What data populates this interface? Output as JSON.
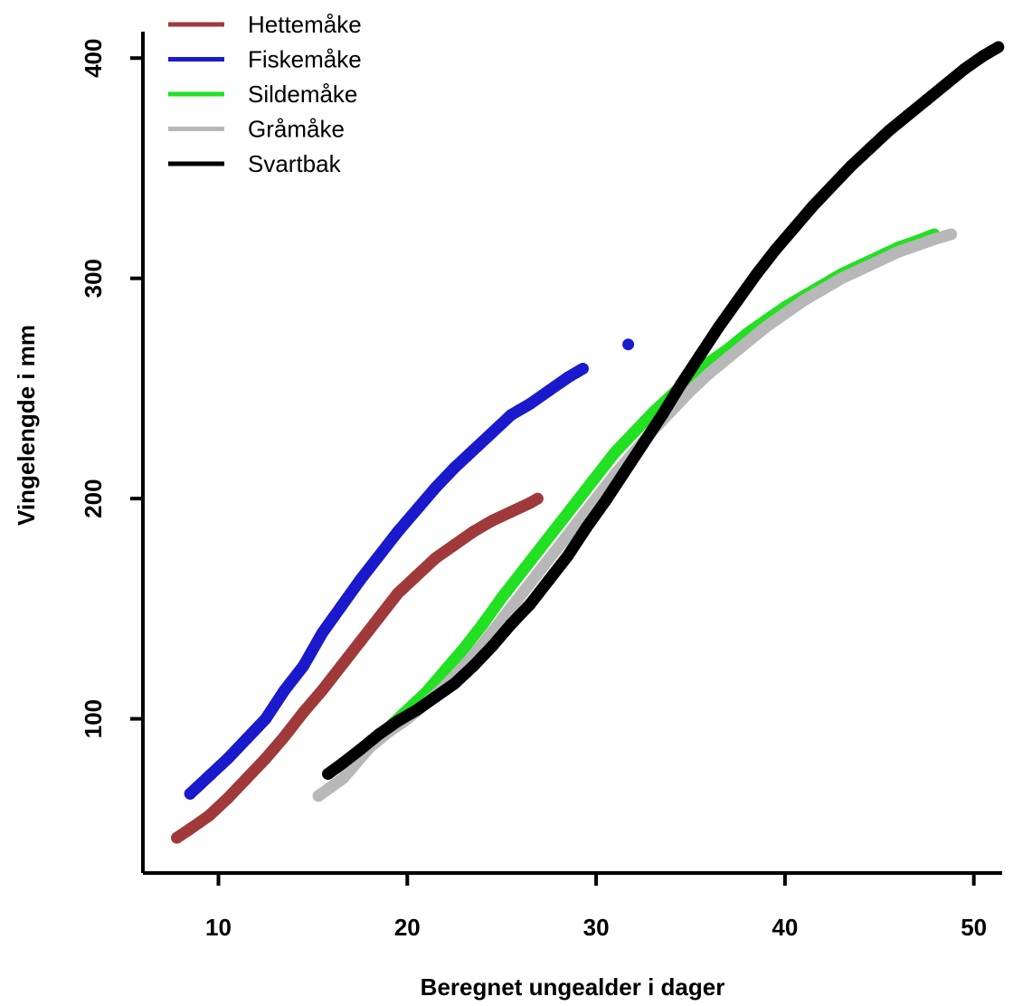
{
  "chart_data": {
    "type": "scatter",
    "title": "",
    "xlabel": "Beregnet ungealder i dager",
    "ylabel": "Vingelengde i mm",
    "xlim": [
      6,
      51.5
    ],
    "ylim": [
      30,
      412
    ],
    "xticks": [
      "10",
      "20",
      "30",
      "40",
      "50"
    ],
    "yticks": [
      "100",
      "200",
      "300",
      "400"
    ],
    "grid": false,
    "legend_position": "top-left",
    "series": [
      {
        "name": "Hettemåke",
        "color": "#a03a3a",
        "points": [
          [
            7.8,
            46
          ],
          [
            8.5,
            50
          ],
          [
            9.5,
            56
          ],
          [
            10.5,
            64
          ],
          [
            11.5,
            73
          ],
          [
            12.5,
            82
          ],
          [
            13.5,
            92
          ],
          [
            14.5,
            103
          ],
          [
            15.5,
            113
          ],
          [
            16.5,
            124
          ],
          [
            17.5,
            135
          ],
          [
            18.5,
            146
          ],
          [
            19.5,
            157
          ],
          [
            20.5,
            165
          ],
          [
            21.5,
            173
          ],
          [
            22.5,
            179
          ],
          [
            23.5,
            185
          ],
          [
            24.5,
            190
          ],
          [
            25.5,
            194
          ],
          [
            26.5,
            198
          ],
          [
            26.9,
            200
          ]
        ]
      },
      {
        "name": "Fiskemåke",
        "color": "#1a1acc",
        "points": [
          [
            8.5,
            66
          ],
          [
            9.5,
            74
          ],
          [
            10.5,
            82
          ],
          [
            11.5,
            91
          ],
          [
            12.5,
            100
          ],
          [
            13.5,
            113
          ],
          [
            14.5,
            124
          ],
          [
            15.5,
            139
          ],
          [
            16.5,
            151
          ],
          [
            17.5,
            163
          ],
          [
            18.5,
            174
          ],
          [
            19.5,
            185
          ],
          [
            20.5,
            195
          ],
          [
            21.5,
            205
          ],
          [
            22.5,
            214
          ],
          [
            23.5,
            222
          ],
          [
            24.5,
            230
          ],
          [
            25.5,
            238
          ],
          [
            26.5,
            243
          ],
          [
            27.5,
            249
          ],
          [
            28.5,
            255
          ],
          [
            29.3,
            259
          ],
          [
            31.7,
            270
          ]
        ]
      },
      {
        "name": "Sildemåke",
        "color": "#22e022",
        "points": [
          [
            17.2,
            84
          ],
          [
            18,
            89
          ],
          [
            19,
            96
          ],
          [
            20,
            104
          ],
          [
            21,
            112
          ],
          [
            22,
            122
          ],
          [
            23,
            132
          ],
          [
            24,
            143
          ],
          [
            25,
            155
          ],
          [
            26,
            166
          ],
          [
            27,
            177
          ],
          [
            28,
            188
          ],
          [
            29,
            199
          ],
          [
            30,
            210
          ],
          [
            31,
            221
          ],
          [
            32,
            230
          ],
          [
            33,
            239
          ],
          [
            34,
            247
          ],
          [
            35,
            255
          ],
          [
            36,
            262
          ],
          [
            37,
            268
          ],
          [
            38,
            275
          ],
          [
            39,
            281
          ],
          [
            40,
            287
          ],
          [
            41,
            292
          ],
          [
            42,
            297
          ],
          [
            43,
            302
          ],
          [
            44,
            306
          ],
          [
            45,
            310
          ],
          [
            46,
            314
          ],
          [
            47,
            317
          ],
          [
            47.9,
            320
          ]
        ]
      },
      {
        "name": "Gråmåke",
        "color": "#b8b8b8",
        "points": [
          [
            15.3,
            65
          ],
          [
            16.6,
            73
          ],
          [
            18,
            87
          ],
          [
            19,
            94
          ],
          [
            20,
            100
          ],
          [
            21,
            107
          ],
          [
            22,
            115
          ],
          [
            23,
            124
          ],
          [
            24,
            134
          ],
          [
            25,
            145
          ],
          [
            26,
            156
          ],
          [
            27,
            167
          ],
          [
            28,
            178
          ],
          [
            29,
            189
          ],
          [
            30,
            200
          ],
          [
            31,
            211
          ],
          [
            32,
            221
          ],
          [
            33,
            231
          ],
          [
            34,
            240
          ],
          [
            35,
            249
          ],
          [
            36,
            257
          ],
          [
            37,
            264
          ],
          [
            38,
            271
          ],
          [
            39,
            278
          ],
          [
            40,
            284
          ],
          [
            41,
            290
          ],
          [
            42,
            295
          ],
          [
            43,
            300
          ],
          [
            44,
            304
          ],
          [
            45,
            308
          ],
          [
            46,
            312
          ],
          [
            47,
            315
          ],
          [
            48,
            318
          ],
          [
            48.8,
            320
          ]
        ]
      },
      {
        "name": "Svartbak",
        "color": "#000000",
        "points": [
          [
            15.8,
            75
          ],
          [
            16.6,
            80
          ],
          [
            17.5,
            86
          ],
          [
            18.5,
            93
          ],
          [
            19.5,
            99
          ],
          [
            20.5,
            104
          ],
          [
            21.5,
            110
          ],
          [
            22.5,
            116
          ],
          [
            23.5,
            124
          ],
          [
            24.5,
            133
          ],
          [
            25.5,
            143
          ],
          [
            26.5,
            152
          ],
          [
            27.5,
            163
          ],
          [
            28.5,
            174
          ],
          [
            29.5,
            187
          ],
          [
            30.5,
            199
          ],
          [
            31.5,
            212
          ],
          [
            32.5,
            225
          ],
          [
            33.5,
            238
          ],
          [
            34.5,
            252
          ],
          [
            35.5,
            265
          ],
          [
            36.5,
            278
          ],
          [
            37.5,
            290
          ],
          [
            38.5,
            302
          ],
          [
            39.5,
            313
          ],
          [
            40.5,
            323
          ],
          [
            41.5,
            333
          ],
          [
            42.5,
            342
          ],
          [
            43.5,
            351
          ],
          [
            44.5,
            359
          ],
          [
            45.5,
            367
          ],
          [
            46.5,
            374
          ],
          [
            47.5,
            381
          ],
          [
            48.5,
            388
          ],
          [
            49.5,
            395
          ],
          [
            50.5,
            401
          ],
          [
            51.3,
            405
          ]
        ]
      }
    ]
  }
}
